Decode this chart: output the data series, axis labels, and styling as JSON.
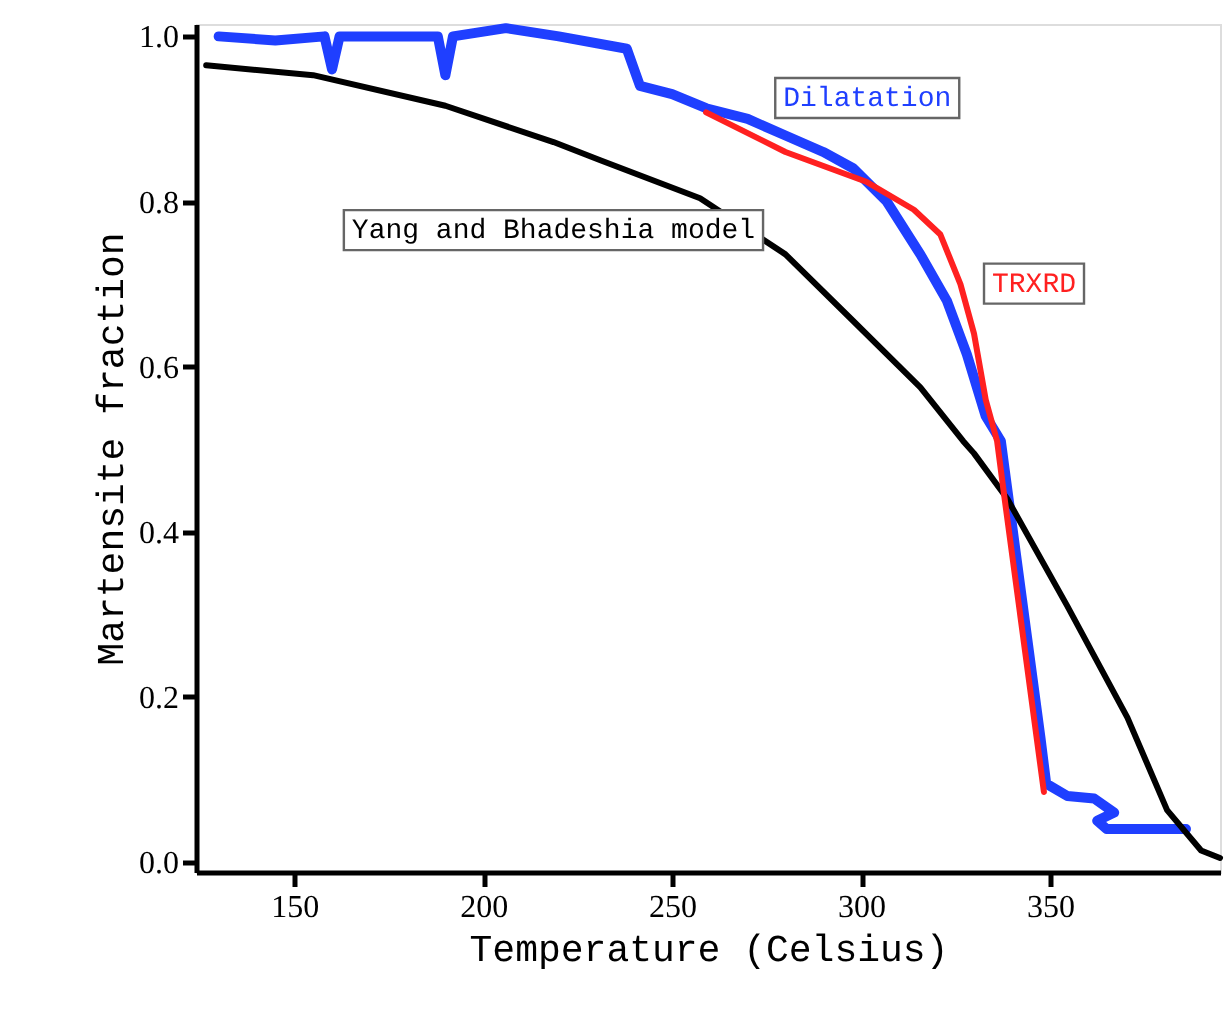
{
  "chart_data": {
    "type": "line",
    "xlabel": "Temperature (Celsius)",
    "ylabel": "Martensite fraction",
    "xlim": [
      124,
      395
    ],
    "ylim": [
      -0.012,
      1.015
    ],
    "xticks": [
      150,
      200,
      250,
      300,
      350
    ],
    "yticks": [
      {
        "value": 0,
        "label": "0.0"
      },
      {
        "value": 0.2,
        "label": "0.2"
      },
      {
        "value": 0.4,
        "label": "0.4"
      },
      {
        "value": 0.6,
        "label": "0.6"
      },
      {
        "value": 0.8,
        "label": "0.8"
      },
      {
        "value": 1,
        "label": "1.0"
      }
    ],
    "grid": false,
    "legend": false,
    "marker": "none",
    "line_style": "solid",
    "series": [
      {
        "name": "Dilatation",
        "color": "#1f3fff",
        "x": [
          130,
          145,
          158,
          160,
          162,
          175,
          188,
          190,
          192,
          206,
          220,
          238,
          241.5,
          250,
          259,
          270,
          280,
          290,
          298,
          306.8,
          315.7,
          322.7,
          328,
          333,
          337,
          340.5,
          344,
          347.5,
          349,
          354.6,
          361.7,
          367,
          362.5,
          365,
          372,
          383,
          386
        ],
        "values": [
          1.0,
          0.995,
          1.0,
          0.96,
          1.0,
          1.0,
          1.0,
          0.953,
          1.0,
          1.01,
          1.0,
          0.985,
          0.94,
          0.93,
          0.913,
          0.9,
          0.88,
          0.86,
          0.84,
          0.8,
          0.736,
          0.68,
          0.615,
          0.54,
          0.51,
          0.39,
          0.27,
          0.15,
          0.095,
          0.08,
          0.077,
          0.06,
          0.05,
          0.04,
          0.04,
          0.04,
          0.04
        ]
      },
      {
        "name": "Yang and Bhadeshia model",
        "color": "#000000",
        "x": [
          126.7,
          155,
          190,
          218.6,
          231,
          257.4,
          280,
          298,
          315.7,
          327,
          329.9,
          338.7,
          354.6,
          370.5,
          381,
          390,
          395
        ],
        "values": [
          0.965,
          0.953,
          0.916,
          0.872,
          0.85,
          0.804,
          0.736,
          0.655,
          0.575,
          0.51,
          0.495,
          0.44,
          0.31,
          0.175,
          0.063,
          0.014,
          0.005
        ]
      },
      {
        "name": "TRXRD",
        "color": "#ff2020",
        "x": [
          259,
          280,
          301.4,
          314,
          321,
          326.3,
          329.9,
          333,
          336,
          337.8,
          348.4
        ],
        "values": [
          0.908,
          0.86,
          0.824,
          0.79,
          0.76,
          0.7,
          0.64,
          0.56,
          0.51,
          0.447,
          0.085
        ]
      }
    ]
  }
}
